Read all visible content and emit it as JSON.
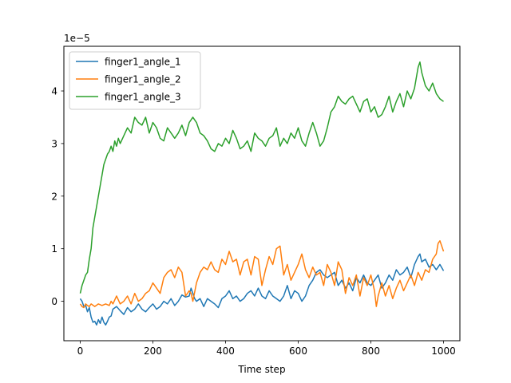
{
  "chart_data": {
    "type": "line",
    "title": "",
    "xlabel": "Time step",
    "ylabel": "",
    "scale_note": "1e−5",
    "xlim": [
      -45,
      1045
    ],
    "ylim": [
      -0.75,
      4.85
    ],
    "xticks": [
      0,
      200,
      400,
      600,
      800,
      1000
    ],
    "yticks": [
      0,
      1,
      2,
      3,
      4
    ],
    "grid": false,
    "legend_position": "top-left",
    "series": [
      {
        "name": "finger1_angle_1",
        "color": "#1f77b4",
        "x": [
          0,
          5,
          10,
          15,
          20,
          25,
          30,
          35,
          40,
          45,
          50,
          55,
          60,
          65,
          70,
          75,
          80,
          85,
          90,
          100,
          110,
          120,
          130,
          140,
          150,
          160,
          170,
          180,
          190,
          200,
          210,
          220,
          230,
          240,
          250,
          260,
          270,
          280,
          290,
          300,
          305,
          310,
          315,
          320,
          330,
          340,
          350,
          360,
          370,
          380,
          390,
          400,
          410,
          420,
          430,
          440,
          450,
          460,
          470,
          480,
          490,
          500,
          510,
          520,
          530,
          540,
          550,
          560,
          570,
          580,
          590,
          600,
          610,
          620,
          630,
          640,
          650,
          660,
          670,
          680,
          690,
          700,
          710,
          720,
          730,
          740,
          750,
          760,
          770,
          780,
          790,
          800,
          810,
          820,
          830,
          840,
          850,
          860,
          870,
          880,
          890,
          900,
          910,
          920,
          930,
          935,
          940,
          950,
          960,
          970,
          980,
          990,
          1000
        ],
        "values": [
          0.05,
          0.0,
          -0.1,
          -0.08,
          -0.2,
          -0.12,
          -0.3,
          -0.4,
          -0.38,
          -0.45,
          -0.35,
          -0.42,
          -0.3,
          -0.4,
          -0.45,
          -0.38,
          -0.3,
          -0.28,
          -0.15,
          -0.1,
          -0.18,
          -0.25,
          -0.12,
          -0.2,
          -0.15,
          -0.05,
          -0.15,
          -0.2,
          -0.12,
          -0.05,
          -0.15,
          -0.1,
          0.0,
          -0.05,
          0.05,
          -0.08,
          0.0,
          0.12,
          0.08,
          0.1,
          0.25,
          0.15,
          0.05,
          0.0,
          0.05,
          -0.1,
          0.05,
          0.0,
          -0.05,
          -0.12,
          0.05,
          0.1,
          0.2,
          0.05,
          0.1,
          0.0,
          0.05,
          0.15,
          0.2,
          0.1,
          0.25,
          0.1,
          0.05,
          0.2,
          0.1,
          0.05,
          0.0,
          0.1,
          0.3,
          0.05,
          0.2,
          0.15,
          0.0,
          0.1,
          0.3,
          0.4,
          0.55,
          0.6,
          0.5,
          0.45,
          0.5,
          0.55,
          0.3,
          0.4,
          0.25,
          0.35,
          0.2,
          0.45,
          0.35,
          0.5,
          0.35,
          0.3,
          0.4,
          0.5,
          0.25,
          0.35,
          0.5,
          0.4,
          0.6,
          0.5,
          0.55,
          0.65,
          0.45,
          0.7,
          0.85,
          0.9,
          0.75,
          0.8,
          0.65,
          0.7,
          0.6,
          0.7,
          0.58
        ]
      },
      {
        "name": "finger1_angle_2",
        "color": "#ff7f0e",
        "x": [
          0,
          5,
          10,
          15,
          20,
          25,
          30,
          40,
          50,
          60,
          70,
          80,
          85,
          90,
          100,
          110,
          120,
          130,
          140,
          150,
          160,
          170,
          180,
          190,
          200,
          210,
          220,
          230,
          240,
          250,
          260,
          270,
          280,
          290,
          300,
          305,
          310,
          320,
          330,
          340,
          350,
          360,
          370,
          380,
          390,
          400,
          410,
          420,
          430,
          440,
          450,
          460,
          470,
          480,
          490,
          500,
          510,
          520,
          530,
          540,
          550,
          560,
          570,
          580,
          590,
          600,
          610,
          620,
          630,
          640,
          650,
          660,
          670,
          680,
          690,
          700,
          710,
          720,
          730,
          740,
          750,
          760,
          770,
          780,
          790,
          800,
          810,
          815,
          820,
          830,
          840,
          850,
          860,
          870,
          880,
          890,
          900,
          910,
          920,
          930,
          940,
          950,
          960,
          970,
          980,
          985,
          990,
          995,
          1000
        ],
        "values": [
          -0.05,
          -0.1,
          -0.12,
          -0.05,
          -0.08,
          -0.1,
          -0.05,
          -0.1,
          -0.05,
          -0.08,
          -0.05,
          -0.08,
          0.0,
          -0.05,
          0.1,
          -0.05,
          0.0,
          0.1,
          -0.05,
          0.15,
          0.0,
          0.05,
          0.15,
          0.2,
          0.35,
          0.25,
          0.15,
          0.45,
          0.55,
          0.6,
          0.45,
          0.65,
          0.55,
          0.1,
          0.2,
          0.15,
          0.0,
          0.35,
          0.55,
          0.65,
          0.6,
          0.75,
          0.6,
          0.55,
          0.8,
          0.7,
          0.95,
          0.75,
          0.8,
          0.5,
          0.75,
          0.8,
          0.5,
          0.85,
          0.8,
          0.3,
          0.6,
          0.85,
          0.7,
          1.0,
          1.05,
          0.5,
          0.7,
          0.4,
          0.55,
          0.7,
          0.9,
          0.6,
          0.45,
          0.65,
          0.5,
          0.55,
          0.3,
          0.7,
          0.55,
          0.3,
          0.75,
          0.6,
          0.15,
          0.45,
          0.3,
          0.5,
          0.1,
          0.45,
          0.3,
          0.5,
          0.2,
          -0.1,
          0.1,
          0.35,
          0.1,
          0.3,
          0.05,
          0.25,
          0.4,
          0.2,
          0.35,
          0.5,
          0.3,
          0.55,
          0.4,
          0.6,
          0.55,
          0.8,
          0.9,
          1.1,
          1.15,
          1.05,
          0.95
        ]
      },
      {
        "name": "finger1_angle_3",
        "color": "#2ca02c",
        "x": [
          0,
          5,
          10,
          15,
          20,
          25,
          30,
          35,
          40,
          45,
          50,
          55,
          60,
          65,
          70,
          75,
          80,
          85,
          90,
          95,
          100,
          105,
          110,
          120,
          130,
          140,
          150,
          160,
          170,
          180,
          190,
          200,
          210,
          220,
          230,
          240,
          250,
          260,
          270,
          280,
          290,
          300,
          310,
          320,
          330,
          340,
          350,
          360,
          370,
          380,
          390,
          400,
          410,
          420,
          430,
          440,
          450,
          460,
          470,
          480,
          490,
          500,
          510,
          520,
          530,
          540,
          550,
          560,
          570,
          580,
          590,
          600,
          610,
          620,
          630,
          640,
          650,
          660,
          670,
          680,
          690,
          700,
          710,
          720,
          730,
          740,
          750,
          760,
          770,
          780,
          790,
          800,
          810,
          820,
          830,
          840,
          850,
          860,
          870,
          880,
          890,
          900,
          910,
          920,
          925,
          930,
          935,
          940,
          950,
          960,
          970,
          980,
          990,
          1000
        ],
        "values": [
          0.15,
          0.3,
          0.4,
          0.5,
          0.55,
          0.8,
          1.0,
          1.4,
          1.6,
          1.8,
          2.0,
          2.2,
          2.4,
          2.6,
          2.7,
          2.8,
          2.85,
          2.95,
          2.85,
          3.05,
          2.95,
          3.1,
          3.0,
          3.15,
          3.3,
          3.2,
          3.5,
          3.4,
          3.35,
          3.5,
          3.2,
          3.4,
          3.3,
          3.1,
          3.05,
          3.3,
          3.2,
          3.1,
          3.2,
          3.35,
          3.15,
          3.4,
          3.5,
          3.4,
          3.2,
          3.15,
          3.05,
          2.9,
          2.85,
          3.0,
          2.95,
          3.1,
          3.0,
          3.25,
          3.1,
          2.9,
          2.95,
          3.05,
          2.85,
          3.2,
          3.1,
          3.05,
          2.95,
          3.1,
          3.15,
          3.3,
          2.95,
          3.1,
          3.0,
          3.2,
          3.1,
          3.3,
          3.05,
          2.95,
          3.2,
          3.4,
          3.2,
          2.95,
          3.05,
          3.3,
          3.6,
          3.7,
          3.9,
          3.8,
          3.75,
          3.85,
          3.9,
          3.75,
          3.6,
          3.8,
          3.85,
          3.6,
          3.7,
          3.5,
          3.55,
          3.7,
          3.9,
          3.6,
          3.8,
          3.95,
          3.7,
          4.0,
          3.85,
          4.05,
          4.25,
          4.45,
          4.55,
          4.35,
          4.1,
          4.0,
          4.15,
          3.95,
          3.85,
          3.8
        ]
      }
    ]
  }
}
